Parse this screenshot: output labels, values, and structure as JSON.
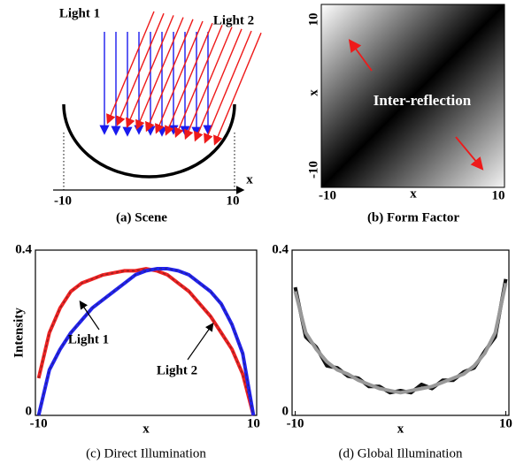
{
  "scene": {
    "light_labels": [
      "Light 1",
      "Light 2"
    ],
    "axis_label": "x",
    "ticks": [
      "-10",
      "10"
    ],
    "caption": "(a) Scene"
  },
  "form_factor": {
    "y_ticks": [
      "10",
      "-10"
    ],
    "y_label": "x",
    "x_ticks": [
      "-10",
      "10"
    ],
    "x_label": "x",
    "annotation": "Inter-reflection",
    "caption": "(b) Form Factor"
  },
  "chart_data": [
    {
      "type": "line",
      "caption": "(c) Direct Illumination",
      "x_label": "x",
      "y_label": "Intensity",
      "annotations": [
        "Light 1",
        "Light 2"
      ],
      "x": [
        -10,
        -9,
        -8,
        -7,
        -6,
        -5,
        -4,
        -3,
        -2,
        -1,
        0,
        1,
        2,
        3,
        4,
        5,
        6,
        7,
        8,
        9,
        10
      ],
      "series": [
        {
          "color": "#ee2222",
          "dash_color": "#992222",
          "values": [
            0.09,
            0.2,
            0.26,
            0.3,
            0.32,
            0.33,
            0.34,
            0.345,
            0.35,
            0.35,
            0.355,
            0.35,
            0.34,
            0.32,
            0.3,
            0.27,
            0.24,
            0.2,
            0.16,
            0.1,
            0
          ]
        },
        {
          "color": "#2222ee",
          "dash_color": "#222299",
          "values": [
            0,
            0.11,
            0.16,
            0.2,
            0.23,
            0.26,
            0.28,
            0.3,
            0.32,
            0.34,
            0.35,
            0.355,
            0.355,
            0.35,
            0.34,
            0.32,
            0.3,
            0.27,
            0.22,
            0.15,
            0
          ]
        }
      ],
      "xlim": [
        -10.3,
        10.3
      ],
      "ylim": [
        0,
        0.4
      ],
      "xticks": [
        -10,
        10
      ],
      "yticks": [
        0,
        0.4
      ]
    },
    {
      "type": "line",
      "caption": "(d) Global Illumination",
      "x_label": "x",
      "x": [
        -10,
        -9,
        -8,
        -7,
        -6,
        -5,
        -4,
        -3,
        -2,
        -1,
        0,
        1,
        2,
        3,
        4,
        5,
        6,
        7,
        8,
        9,
        10
      ],
      "series": [
        {
          "color": "#111111",
          "values": [
            0.31,
            0.19,
            0.165,
            0.12,
            0.115,
            0.095,
            0.09,
            0.07,
            0.07,
            0.055,
            0.06,
            0.055,
            0.075,
            0.065,
            0.085,
            0.085,
            0.105,
            0.115,
            0.155,
            0.19,
            0.33
          ]
        },
        {
          "color": "#999999",
          "values": [
            0.3,
            0.2,
            0.16,
            0.13,
            0.11,
            0.1,
            0.085,
            0.075,
            0.065,
            0.06,
            0.055,
            0.06,
            0.065,
            0.07,
            0.08,
            0.09,
            0.1,
            0.12,
            0.15,
            0.2,
            0.32
          ]
        }
      ],
      "xlim": [
        -10.3,
        10.3
      ],
      "ylim": [
        0,
        0.4
      ],
      "xticks": [
        -10,
        10
      ],
      "yticks": [
        0,
        0.4
      ]
    }
  ]
}
